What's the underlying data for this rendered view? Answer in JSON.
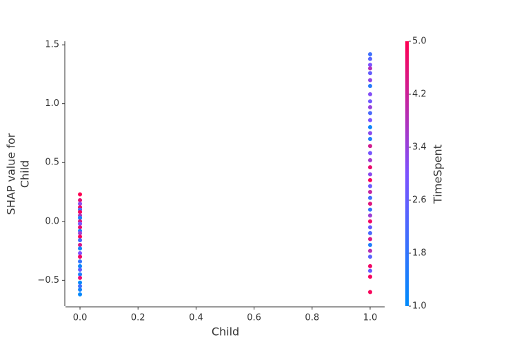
{
  "chart_data": {
    "type": "scatter",
    "xlabel": "Child",
    "ylabel": [
      "SHAP value for",
      "Child"
    ],
    "colorbar_label": "TimeSpent",
    "xlim": [
      -0.05,
      1.05
    ],
    "ylim": [
      -0.72,
      1.53
    ],
    "clim": [
      1,
      5
    ],
    "colormap": [
      "#008bfb",
      "#7c52ff",
      "#ff0052"
    ],
    "xticks": [
      {
        "value": 0,
        "label": "0.0"
      },
      {
        "value": 0.2,
        "label": "0.2"
      },
      {
        "value": 0.4,
        "label": "0.4"
      },
      {
        "value": 0.6,
        "label": "0.6"
      },
      {
        "value": 0.8,
        "label": "0.8"
      },
      {
        "value": 1,
        "label": "1.0"
      }
    ],
    "yticks": [
      {
        "value": -0.5,
        "label": "−0.5"
      },
      {
        "value": 0,
        "label": "0.0"
      },
      {
        "value": 0.5,
        "label": "0.5"
      },
      {
        "value": 1,
        "label": "1.0"
      },
      {
        "value": 1.5,
        "label": "1.5"
      }
    ],
    "cticks": [
      {
        "value": 1,
        "label": "1.0"
      },
      1.8,
      2.6,
      3.4,
      4.2,
      {
        "value": 5,
        "label": "5.0"
      }
    ],
    "x": [
      0,
      0,
      0,
      0,
      0,
      0,
      0,
      0,
      0,
      0,
      0,
      0,
      0,
      0,
      0,
      0,
      0,
      0,
      0,
      0,
      0,
      0,
      0,
      0,
      0,
      0,
      0,
      0,
      1,
      1,
      1,
      1,
      1,
      1,
      1,
      1,
      1,
      1,
      1,
      1,
      1,
      1,
      1,
      1,
      1,
      1,
      1,
      1,
      1,
      1,
      1,
      1,
      1,
      1,
      1,
      1,
      1,
      1,
      1,
      1,
      1,
      1,
      1,
      1,
      1,
      1
    ],
    "values": [
      0.23,
      0.18,
      0.15,
      0.12,
      0.1,
      0.08,
      0.05,
      0.03,
      0.0,
      -0.02,
      -0.05,
      -0.08,
      -0.1,
      -0.13,
      -0.16,
      -0.2,
      -0.23,
      -0.27,
      -0.3,
      -0.34,
      -0.38,
      -0.41,
      -0.45,
      -0.48,
      -0.52,
      -0.55,
      -0.58,
      -0.62,
      1.42,
      1.38,
      1.33,
      1.3,
      1.26,
      1.2,
      1.15,
      1.08,
      1.02,
      0.97,
      0.92,
      0.86,
      0.8,
      0.75,
      0.7,
      0.64,
      0.58,
      0.52,
      0.46,
      0.4,
      0.35,
      0.3,
      0.25,
      0.2,
      0.15,
      0.1,
      0.05,
      0.0,
      -0.05,
      -0.1,
      -0.15,
      -0.2,
      -0.25,
      -0.3,
      -0.38,
      -0.42,
      -0.47,
      -0.6
    ],
    "color_values": [
      5,
      4.6,
      3.2,
      4.8,
      2.2,
      4.9,
      3.8,
      1.4,
      4.5,
      2.9,
      4.7,
      1.6,
      3.5,
      4.9,
      2.1,
      4.4,
      1.3,
      3.0,
      4.8,
      1.8,
      1.2,
      2.5,
      1.5,
      4.6,
      1.1,
      2.0,
      1.3,
      1.1,
      2.0,
      2.4,
      3.0,
      3.8,
      2.6,
      3.3,
      1.6,
      3.1,
      2.8,
      3.4,
      2.2,
      3.0,
      1.2,
      3.2,
      1.5,
      4.3,
      2.9,
      3.6,
      4.7,
      3.2,
      4.9,
      2.7,
      4.1,
      2.0,
      4.5,
      1.8,
      3.5,
      4.8,
      2.6,
      2.2,
      4.4,
      1.5,
      3.9,
      2.4,
      4.8,
      2.6,
      4.9,
      4.9
    ]
  }
}
